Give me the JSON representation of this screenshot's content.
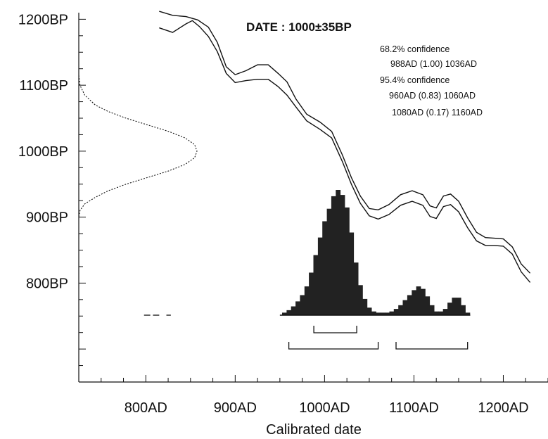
{
  "chart_data": {
    "type": "area",
    "title": "DATE : 1000±35BP",
    "xlabel": "Calibrated date",
    "ylabel": "",
    "x_ticks": [
      "800AD",
      "900AD",
      "1000AD",
      "1100AD",
      "1200AD"
    ],
    "y_ticks": [
      "1200BP",
      "1100BP",
      "1000BP",
      "900BP",
      "800BP"
    ],
    "xlim": [
      725,
      1250
    ],
    "ylim": [
      650,
      1210
    ],
    "grid": false,
    "annotations": [
      "68.2% confidence",
      "988AD (1.00) 1036AD",
      "95.4% confidence",
      "960AD (0.83) 1060AD",
      "1080AD (0.17) 1160AD"
    ],
    "confidence_ranges": {
      "sigma1": [
        {
          "from": 988,
          "to": 1036,
          "prob": 1.0
        }
      ],
      "sigma2": [
        {
          "from": 960,
          "to": 1060,
          "prob": 0.83
        },
        {
          "from": 1080,
          "to": 1160,
          "prob": 0.17
        }
      ]
    },
    "calibration_curve_upper": {
      "x": [
        815,
        830,
        845,
        858,
        870,
        880,
        890,
        900,
        912,
        925,
        937,
        948,
        958,
        968,
        980,
        995,
        1008,
        1020,
        1030,
        1040,
        1050,
        1060,
        1072,
        1085,
        1098,
        1110,
        1118,
        1125,
        1133,
        1141,
        1150,
        1160,
        1170,
        1180,
        1190,
        1200,
        1210,
        1220,
        1230
      ],
      "y": [
        1212,
        1206,
        1204,
        1199,
        1188,
        1165,
        1128,
        1116,
        1122,
        1131,
        1131,
        1118,
        1105,
        1079,
        1056,
        1044,
        1030,
        994,
        960,
        932,
        913,
        911,
        919,
        934,
        940,
        934,
        917,
        914,
        932,
        935,
        924,
        899,
        877,
        869,
        868,
        867,
        855,
        829,
        815
      ]
    },
    "calibration_curve_lower": {
      "x": [
        815,
        830,
        845,
        852,
        860,
        870,
        880,
        890,
        900,
        912,
        925,
        937,
        948,
        958,
        968,
        980,
        995,
        1008,
        1020,
        1030,
        1040,
        1050,
        1060,
        1072,
        1085,
        1098,
        1110,
        1118,
        1125,
        1133,
        1141,
        1150,
        1160,
        1170,
        1180,
        1190,
        1200,
        1210,
        1220,
        1230
      ],
      "y": [
        1187,
        1180,
        1193,
        1198,
        1189,
        1174,
        1151,
        1118,
        1104,
        1107,
        1109,
        1109,
        1098,
        1085,
        1067,
        1046,
        1033,
        1020,
        984,
        950,
        921,
        902,
        897,
        904,
        918,
        924,
        918,
        901,
        898,
        916,
        919,
        908,
        884,
        864,
        857,
        857,
        856,
        844,
        817,
        801
      ]
    },
    "radiocarbon_distribution": {
      "bp": [
        1115,
        1100,
        1085,
        1070,
        1060,
        1050,
        1040,
        1030,
        1020,
        1010,
        1000,
        990,
        980,
        970,
        960,
        950,
        940,
        930,
        920,
        910,
        900
      ],
      "density": [
        0.0,
        0.01,
        0.05,
        0.14,
        0.25,
        0.4,
        0.58,
        0.76,
        0.9,
        0.98,
        1.0,
        0.98,
        0.9,
        0.76,
        0.58,
        0.4,
        0.25,
        0.14,
        0.05,
        0.01,
        0.0
      ]
    },
    "calibrated_distribution": {
      "x": [
        955,
        960,
        965,
        970,
        975,
        980,
        985,
        990,
        995,
        1000,
        1005,
        1010,
        1015,
        1020,
        1025,
        1030,
        1035,
        1040,
        1045,
        1050,
        1055,
        1060,
        1065,
        1070,
        1075,
        1080,
        1085,
        1090,
        1095,
        1100,
        1105,
        1110,
        1115,
        1120,
        1125,
        1130,
        1135,
        1140,
        1145,
        1150,
        1155,
        1160
      ],
      "y": [
        0.02,
        0.04,
        0.07,
        0.11,
        0.16,
        0.23,
        0.34,
        0.48,
        0.62,
        0.75,
        0.85,
        0.95,
        1.0,
        0.96,
        0.86,
        0.66,
        0.42,
        0.24,
        0.13,
        0.06,
        0.03,
        0.02,
        0.02,
        0.02,
        0.03,
        0.05,
        0.08,
        0.12,
        0.16,
        0.2,
        0.23,
        0.21,
        0.15,
        0.08,
        0.03,
        0.03,
        0.05,
        0.1,
        0.14,
        0.14,
        0.08,
        0.02
      ]
    },
    "calibrated_distribution_tail": {
      "segments": [
        [
          798,
          805
        ],
        [
          808,
          815
        ],
        [
          823,
          828
        ]
      ]
    }
  }
}
